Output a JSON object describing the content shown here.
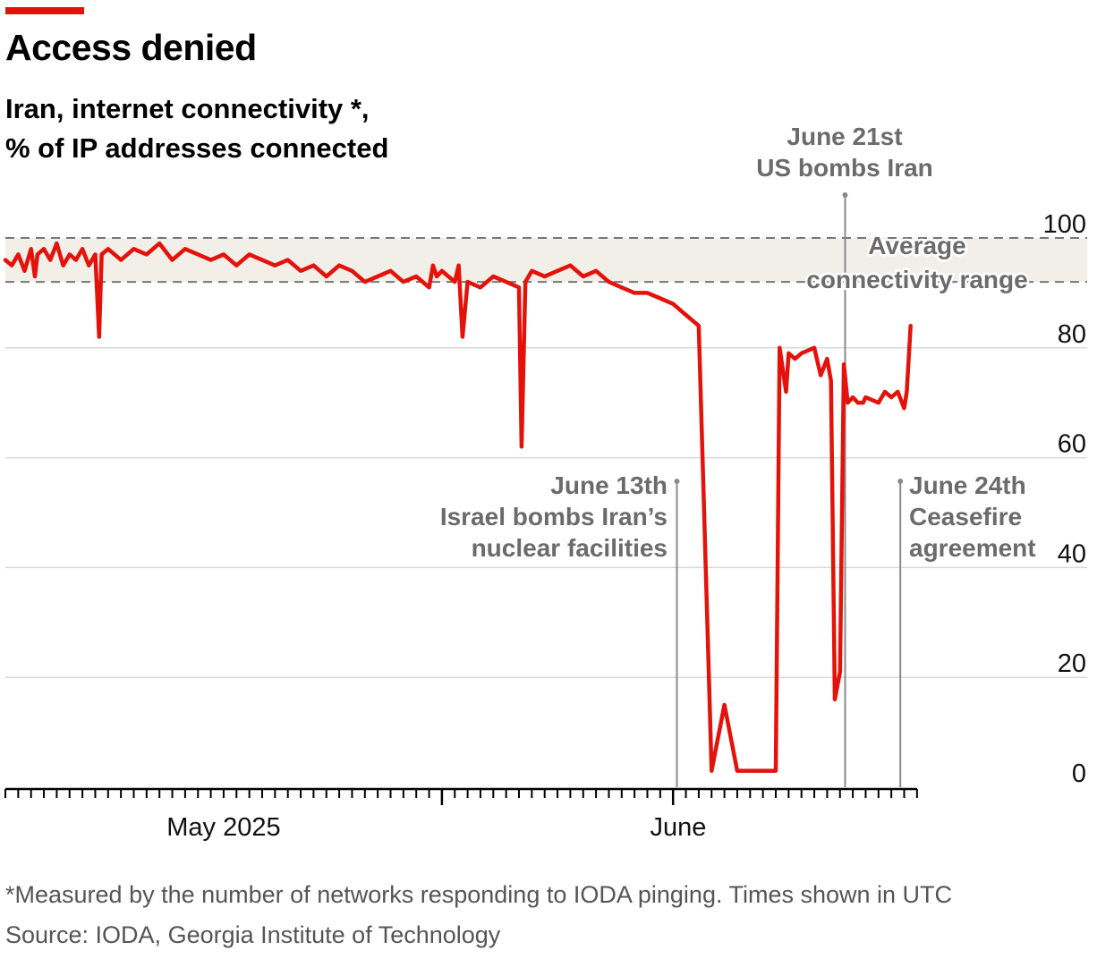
{
  "title": "Access denied",
  "subtitle_lines": [
    "Iran, internet connectivity *,",
    "% of IP addresses connected"
  ],
  "footnote": "*Measured by the number of networks responding to IODA pinging. Times shown in UTC",
  "source": "Source: IODA, Georgia Institute of Technology",
  "colors": {
    "accent": "#e3120b",
    "series": "#e3120b",
    "annotation": "#6b6b6b",
    "band": "#f1efe8",
    "grid": "#d9d9d9"
  },
  "chart_data": {
    "type": "line",
    "series": [
      {
        "values_x_days_from_apr15": [
          0,
          0.5,
          1,
          1.5,
          2,
          2.3,
          2.5,
          3,
          3.5,
          4,
          4.5,
          5,
          5.5,
          6,
          6.5,
          7,
          7.3,
          7.5,
          8,
          9,
          10,
          11,
          12,
          13,
          14,
          15,
          16,
          17,
          18,
          19,
          20,
          21,
          22,
          23,
          24,
          25,
          26,
          27,
          28,
          29,
          30,
          31,
          32,
          33,
          33.3,
          33.6,
          34,
          35,
          35.3,
          35.6,
          36,
          37,
          38,
          39,
          40,
          40.2,
          40.5,
          41,
          42,
          43,
          44,
          45,
          46,
          47,
          48,
          49,
          50,
          51,
          52,
          53,
          54,
          55,
          56,
          57,
          58,
          59,
          59.5,
          60,
          60.3,
          60.8,
          61,
          61.5,
          62,
          63,
          63.5,
          64,
          64.3,
          64.6,
          65,
          65.3,
          65.6,
          66,
          66.4,
          66.8,
          67,
          68,
          68.5,
          69,
          69.5,
          70,
          70.2,
          70.5
        ],
        "values_y": [
          96,
          95,
          97,
          94,
          98,
          93,
          97,
          98,
          96,
          99,
          95,
          97,
          96,
          98,
          95,
          97,
          82,
          97,
          98,
          96,
          98,
          97,
          99,
          96,
          98,
          97,
          96,
          97,
          95,
          97,
          96,
          95,
          96,
          94,
          95,
          93,
          95,
          94,
          92,
          93,
          94,
          92,
          93,
          91,
          95,
          93,
          94,
          92,
          95,
          82,
          92,
          91,
          93,
          92,
          91,
          62,
          92,
          94,
          93,
          94,
          95,
          93,
          94,
          92,
          91,
          90,
          90,
          89,
          88,
          86,
          84,
          3,
          15,
          3,
          3,
          3,
          3,
          3,
          80,
          72,
          79,
          78,
          79,
          80,
          75,
          78,
          74,
          16,
          21,
          77,
          70,
          71,
          70,
          70,
          71,
          70,
          72,
          71,
          72,
          69,
          72,
          84
        ]
      }
    ],
    "xlabel": "",
    "ylabel": "",
    "ylim": [
      0,
      100
    ],
    "y_ticks": [
      "0",
      "20",
      "40",
      "60",
      "80",
      "100"
    ],
    "x_tick_labels": [
      "May 2025",
      "June"
    ],
    "band": {
      "label_lines": [
        "Average",
        "connectivity range"
      ],
      "range": [
        92,
        100
      ]
    },
    "annotations": [
      {
        "id": "june13",
        "lines": [
          "June 13th",
          "Israel bombs Iran’s",
          "nuclear facilities"
        ]
      },
      {
        "id": "june21",
        "lines": [
          "June 21st",
          "US bombs Iran"
        ]
      },
      {
        "id": "june24",
        "lines": [
          "June 24th",
          "Ceasefire",
          "agreement"
        ]
      }
    ],
    "grid": true
  }
}
